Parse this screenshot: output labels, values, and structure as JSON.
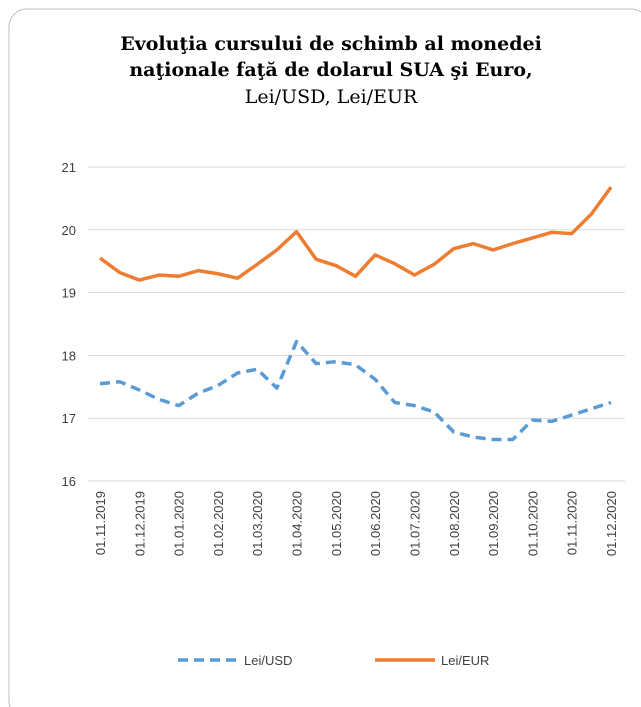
{
  "chart_data": {
    "type": "line",
    "title": [
      "Evoluţia cursului de schimb al monedei",
      "naţionale faţă de dolarul SUA şi Euro,"
    ],
    "subtitle": "Lei/USD, Lei/EUR",
    "categories": [
      "01.11.2019",
      null,
      "01.12.2019",
      null,
      "01.01.2020",
      null,
      "01.02.2020",
      null,
      "01.03.2020",
      null,
      "01.04.2020",
      null,
      "01.05.2020",
      null,
      "01.06.2020",
      null,
      "01.07.2020",
      null,
      "01.08.2020",
      null,
      "01.09.2020",
      null,
      "01.10.2020",
      null,
      "01.11.2020",
      null,
      "01.12.2020"
    ],
    "series": [
      {
        "name": "Lei/USD",
        "color": "#5b9bd5",
        "dash": true,
        "values": [
          17.55,
          17.58,
          17.45,
          17.3,
          17.2,
          17.4,
          17.52,
          17.72,
          17.78,
          17.48,
          18.22,
          17.87,
          17.9,
          17.85,
          17.62,
          17.25,
          17.2,
          17.1,
          16.78,
          16.7,
          16.66,
          16.66,
          16.97,
          16.95,
          17.05,
          17.15,
          17.25
        ]
      },
      {
        "name": "Lei/EUR",
        "color": "#ed7d31",
        "dash": false,
        "values": [
          19.55,
          19.32,
          19.2,
          19.28,
          19.26,
          19.35,
          19.3,
          19.23,
          19.45,
          19.68,
          19.97,
          19.53,
          19.43,
          19.26,
          19.6,
          19.46,
          19.28,
          19.45,
          19.7,
          19.78,
          19.68,
          19.78,
          19.87,
          19.96,
          19.94,
          20.25,
          20.68
        ]
      }
    ],
    "ylim": [
      16,
      21
    ],
    "yticks": [
      16,
      17,
      18,
      19,
      20,
      21
    ],
    "grid": true,
    "legend": "bottom"
  }
}
